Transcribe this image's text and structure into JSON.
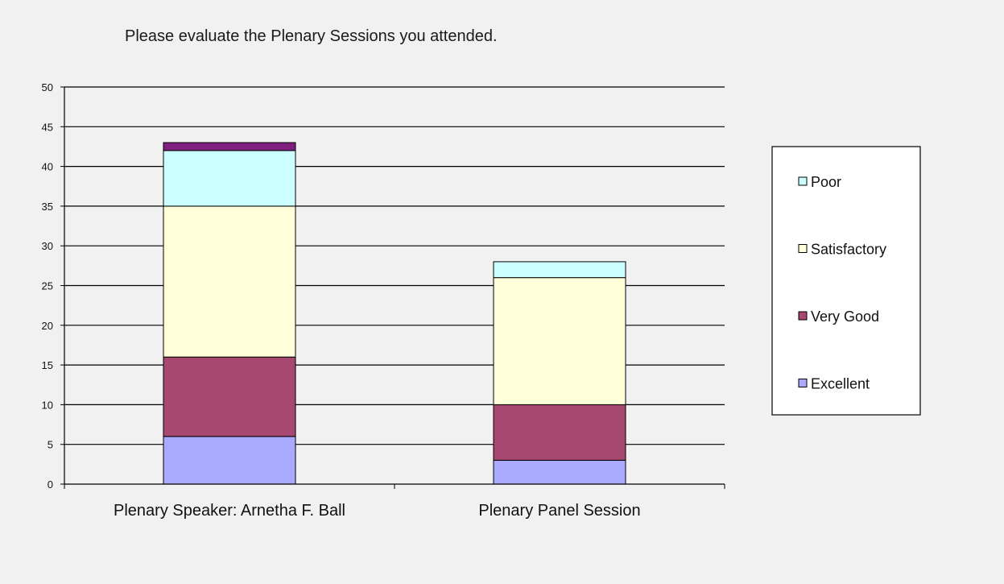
{
  "chart_data": {
    "type": "bar",
    "stacked": true,
    "title": "Please evaluate the Plenary Sessions you attended.",
    "categories": [
      "Plenary Speaker: Arnetha F. Ball",
      "Plenary Panel Session"
    ],
    "ylim": [
      0,
      50
    ],
    "yticks": [
      0,
      5,
      10,
      15,
      20,
      25,
      30,
      35,
      40,
      45,
      50
    ],
    "grid": true,
    "legend_position": "right",
    "series": [
      {
        "name": "Excellent",
        "color": "#aaaaff",
        "values": [
          6,
          3
        ]
      },
      {
        "name": "Very Good",
        "color": "#a64870",
        "values": [
          10,
          7
        ]
      },
      {
        "name": "Satisfactory",
        "color": "#ffffd9",
        "values": [
          19,
          16
        ]
      },
      {
        "name": "Poor",
        "color": "#ccffff",
        "values": [
          7,
          2
        ]
      },
      {
        "color": "#7f1f7f",
        "values": [
          1,
          0
        ]
      }
    ]
  }
}
